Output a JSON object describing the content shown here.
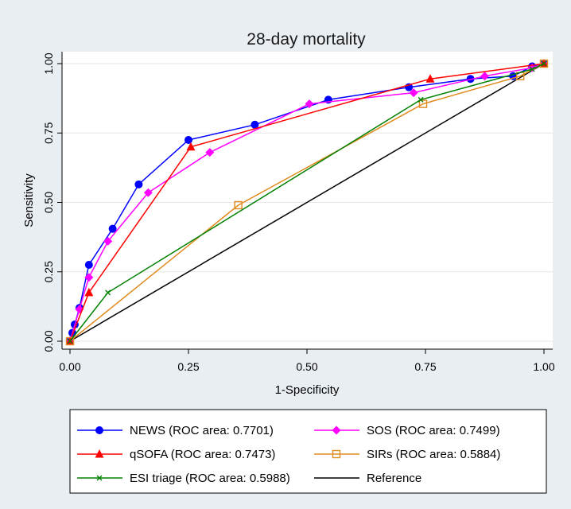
{
  "chart_data": {
    "type": "line",
    "title": "28-day mortality",
    "xlabel": "1-Specificity",
    "ylabel": "Sensitivity",
    "xlim": [
      0,
      1
    ],
    "ylim": [
      0,
      1
    ],
    "xticks": [
      "0.00",
      "0.25",
      "0.50",
      "0.75",
      "1.00"
    ],
    "yticks": [
      "0.00",
      "0.25",
      "0.50",
      "0.75",
      "1.00"
    ],
    "legend_position": "bottom",
    "series": [
      {
        "name": "NEWS (ROC area: 0.7701)",
        "color": "#0000ff",
        "marker": "circle",
        "points": [
          [
            0,
            0
          ],
          [
            0.005,
            0.03
          ],
          [
            0.01,
            0.06
          ],
          [
            0.02,
            0.12
          ],
          [
            0.04,
            0.275
          ],
          [
            0.09,
            0.405
          ],
          [
            0.145,
            0.565
          ],
          [
            0.25,
            0.725
          ],
          [
            0.39,
            0.78
          ],
          [
            0.545,
            0.87
          ],
          [
            0.715,
            0.915
          ],
          [
            0.845,
            0.945
          ],
          [
            0.935,
            0.955
          ],
          [
            0.975,
            0.99
          ],
          [
            1,
            1
          ]
        ]
      },
      {
        "name": "SOS (ROC area: 0.7499)",
        "color": "#ff00ff",
        "marker": "diamond",
        "points": [
          [
            0,
            0
          ],
          [
            0.02,
            0.115
          ],
          [
            0.04,
            0.23
          ],
          [
            0.08,
            0.36
          ],
          [
            0.165,
            0.535
          ],
          [
            0.295,
            0.68
          ],
          [
            0.505,
            0.855
          ],
          [
            0.725,
            0.895
          ],
          [
            0.875,
            0.955
          ],
          [
            0.975,
            0.985
          ],
          [
            1,
            1
          ]
        ]
      },
      {
        "name": "qSOFA (ROC area: 0.7473)",
        "color": "#ff0000",
        "marker": "triangle",
        "points": [
          [
            0,
            0
          ],
          [
            0.04,
            0.175
          ],
          [
            0.255,
            0.7
          ],
          [
            0.76,
            0.945
          ],
          [
            1,
            1
          ]
        ]
      },
      {
        "name": "SIRs (ROC area: 0.5884)",
        "color": "#e08a1e",
        "marker": "square-open",
        "points": [
          [
            0,
            0
          ],
          [
            0.355,
            0.49
          ],
          [
            0.745,
            0.855
          ],
          [
            0.95,
            0.955
          ],
          [
            1,
            1
          ]
        ]
      },
      {
        "name": "ESI triage (ROC area: 0.5988)",
        "color": "#008000",
        "marker": "x",
        "points": [
          [
            0,
            0
          ],
          [
            0.08,
            0.175
          ],
          [
            0.74,
            0.87
          ],
          [
            0.975,
            0.98
          ],
          [
            1,
            1
          ]
        ]
      },
      {
        "name": "Reference",
        "color": "#000000",
        "marker": "none",
        "points": [
          [
            0,
            0
          ],
          [
            1,
            1
          ]
        ]
      }
    ]
  }
}
